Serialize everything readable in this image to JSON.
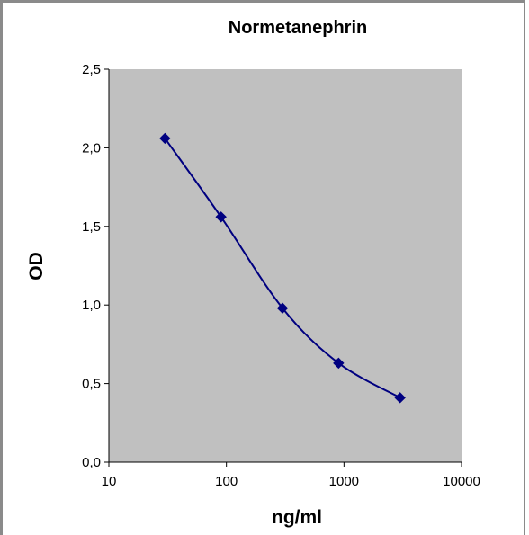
{
  "chart_data": {
    "type": "line",
    "title": "Normetanephrin",
    "xlabel": "ng/ml",
    "ylabel": "OD",
    "x_scale": "log",
    "xlim": [
      10,
      10000
    ],
    "ylim": [
      0,
      2.5
    ],
    "x_ticks": [
      "10",
      "100",
      "1000",
      "10000"
    ],
    "y_ticks": [
      "0,0",
      "0,5",
      "1,0",
      "1,5",
      "2,0",
      "2,5"
    ],
    "grid": false,
    "legend": "none",
    "plot_background": "#c0c0c0",
    "series": [
      {
        "color": "#000080",
        "marker": "diamond",
        "smooth": true,
        "x": [
          30,
          90,
          300,
          900,
          3000
        ],
        "y": [
          2.06,
          1.56,
          0.98,
          0.63,
          0.41
        ]
      }
    ]
  }
}
